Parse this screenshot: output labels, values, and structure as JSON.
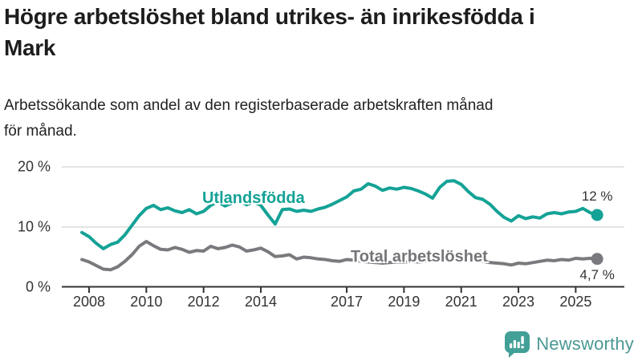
{
  "header": {
    "title": "Högre arbetslöshet bland utrikes- än inrikesfödda i\nMark",
    "subtitle": "Arbetssökande som andel av den registerbaserade arbetskraften månad\nför månad."
  },
  "chart_data": {
    "type": "line",
    "title": "Högre arbetslöshet bland utrikes- än inrikesfödda i Mark",
    "subtitle": "Arbetssökande som andel av den registerbaserade arbetskraften månad för månad.",
    "grid": "horizontal",
    "legend_position": "inline-labels",
    "ylim": [
      0,
      21.5
    ],
    "y_ticks": [
      0,
      10,
      20
    ],
    "y_tick_labels": [
      "0 %",
      "10 %",
      "20 %"
    ],
    "x_range": [
      2007.75,
      2025.77
    ],
    "x_ticks": [
      2008,
      2010,
      2012,
      2014,
      2017,
      2019,
      2021,
      2023,
      2025
    ],
    "x_tick_labels": [
      "2008",
      "2010",
      "2012",
      "2014",
      "2017",
      "2019",
      "2021",
      "2023",
      "2025"
    ],
    "axis_color": "#333333",
    "gridline_color": "#dcdcdc",
    "series": [
      {
        "name": "Utlandsfödda",
        "color": "#14a296",
        "end_label": "12 %",
        "end_dot": true,
        "x": [
          2007.75,
          2008.0,
          2008.25,
          2008.5,
          2008.75,
          2009.0,
          2009.25,
          2009.5,
          2009.75,
          2010.0,
          2010.25,
          2010.5,
          2010.75,
          2011.0,
          2011.25,
          2011.5,
          2011.75,
          2012.0,
          2012.25,
          2012.5,
          2012.75,
          2013.0,
          2013.25,
          2013.5,
          2013.75,
          2014.0,
          2014.25,
          2014.5,
          2014.75,
          2015.0,
          2015.25,
          2015.5,
          2015.75,
          2016.0,
          2016.25,
          2016.5,
          2016.75,
          2017.0,
          2017.25,
          2017.5,
          2017.75,
          2018.0,
          2018.25,
          2018.5,
          2018.75,
          2019.0,
          2019.25,
          2019.5,
          2019.75,
          2020.0,
          2020.25,
          2020.5,
          2020.75,
          2021.0,
          2021.25,
          2021.5,
          2021.75,
          2022.0,
          2022.25,
          2022.5,
          2022.75,
          2023.0,
          2023.25,
          2023.5,
          2023.75,
          2024.0,
          2024.25,
          2024.5,
          2024.75,
          2025.0,
          2025.25,
          2025.5,
          2025.75
        ],
        "values": [
          9.1,
          8.4,
          7.3,
          6.4,
          7.1,
          7.5,
          8.7,
          10.3,
          11.9,
          13.1,
          13.6,
          12.9,
          13.2,
          12.7,
          12.4,
          12.9,
          12.2,
          12.6,
          13.6,
          14.2,
          13.5,
          14.0,
          14.4,
          13.7,
          14.2,
          13.6,
          12.0,
          10.5,
          12.9,
          13.0,
          12.6,
          12.8,
          12.6,
          13.0,
          13.3,
          13.8,
          14.4,
          15.0,
          16.0,
          16.3,
          17.2,
          16.8,
          16.1,
          16.5,
          16.3,
          16.6,
          16.4,
          16.0,
          15.5,
          14.8,
          16.6,
          17.6,
          17.7,
          17.1,
          15.9,
          14.9,
          14.6,
          13.8,
          12.6,
          11.6,
          11.0,
          11.9,
          11.4,
          11.7,
          11.5,
          12.2,
          12.4,
          12.2,
          12.5,
          12.6,
          13.1,
          12.4,
          12.0
        ]
      },
      {
        "name": "Total arbetslöshet",
        "color": "#7a7a7e",
        "end_label": "4,7 %",
        "end_dot": true,
        "x": [
          2007.75,
          2008.0,
          2008.25,
          2008.5,
          2008.75,
          2009.0,
          2009.25,
          2009.5,
          2009.75,
          2010.0,
          2010.25,
          2010.5,
          2010.75,
          2011.0,
          2011.25,
          2011.5,
          2011.75,
          2012.0,
          2012.25,
          2012.5,
          2012.75,
          2013.0,
          2013.25,
          2013.5,
          2013.75,
          2014.0,
          2014.25,
          2014.5,
          2014.75,
          2015.0,
          2015.25,
          2015.5,
          2015.75,
          2016.0,
          2016.25,
          2016.5,
          2016.75,
          2017.0,
          2017.25,
          2017.5,
          2017.75,
          2018.0,
          2018.25,
          2018.5,
          2018.75,
          2019.0,
          2019.25,
          2019.5,
          2019.75,
          2020.0,
          2020.25,
          2020.5,
          2020.75,
          2021.0,
          2021.25,
          2021.5,
          2021.75,
          2022.0,
          2022.25,
          2022.5,
          2022.75,
          2023.0,
          2023.25,
          2023.5,
          2023.75,
          2024.0,
          2024.25,
          2024.5,
          2024.75,
          2025.0,
          2025.25,
          2025.5,
          2025.75
        ],
        "values": [
          4.6,
          4.2,
          3.6,
          3.0,
          2.9,
          3.4,
          4.3,
          5.4,
          6.8,
          7.6,
          6.9,
          6.3,
          6.2,
          6.6,
          6.3,
          5.8,
          6.1,
          6.0,
          6.8,
          6.4,
          6.6,
          7.0,
          6.7,
          6.0,
          6.2,
          6.5,
          5.9,
          5.1,
          5.2,
          5.4,
          4.7,
          5.0,
          4.9,
          4.7,
          4.6,
          4.4,
          4.3,
          4.6,
          4.5,
          4.3,
          4.2,
          4.1,
          4.0,
          4.1,
          4.2,
          4.2,
          4.3,
          4.2,
          4.3,
          4.6,
          5.3,
          5.5,
          5.3,
          5.1,
          4.8,
          4.5,
          4.3,
          4.1,
          4.0,
          3.9,
          3.7,
          4.0,
          3.9,
          4.1,
          4.3,
          4.5,
          4.4,
          4.6,
          4.5,
          4.8,
          4.7,
          4.8,
          4.7
        ]
      }
    ]
  },
  "branding": {
    "logo_text": "Newsworthy",
    "logo_text_color": "#4b9894",
    "logo_icon_color": "#43a097",
    "logo_icon": "bar-chart-speech-bubble-icon"
  }
}
